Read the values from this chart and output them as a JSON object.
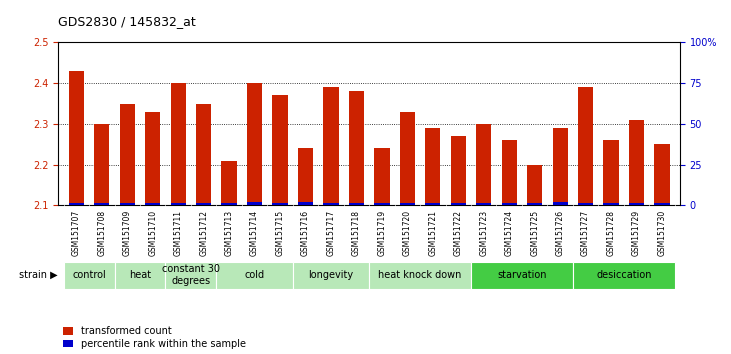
{
  "title": "GDS2830 / 145832_at",
  "samples": [
    "GSM151707",
    "GSM151708",
    "GSM151709",
    "GSM151710",
    "GSM151711",
    "GSM151712",
    "GSM151713",
    "GSM151714",
    "GSM151715",
    "GSM151716",
    "GSM151717",
    "GSM151718",
    "GSM151719",
    "GSM151720",
    "GSM151721",
    "GSM151722",
    "GSM151723",
    "GSM151724",
    "GSM151725",
    "GSM151726",
    "GSM151727",
    "GSM151728",
    "GSM151729",
    "GSM151730"
  ],
  "red_values": [
    2.43,
    2.3,
    2.35,
    2.33,
    2.4,
    2.35,
    2.21,
    2.4,
    2.37,
    2.24,
    2.39,
    2.38,
    2.24,
    2.33,
    2.29,
    2.27,
    2.3,
    2.26,
    2.2,
    2.29,
    2.39,
    2.26,
    2.31,
    2.25
  ],
  "blue_values": [
    0.005,
    0.005,
    0.005,
    0.005,
    0.005,
    0.005,
    0.005,
    0.007,
    0.005,
    0.007,
    0.005,
    0.005,
    0.005,
    0.005,
    0.005,
    0.005,
    0.005,
    0.005,
    0.005,
    0.007,
    0.005,
    0.005,
    0.005,
    0.005
  ],
  "bar_bottom": 2.1,
  "ylim": [
    2.1,
    2.5
  ],
  "yticks_left": [
    2.1,
    2.2,
    2.3,
    2.4,
    2.5
  ],
  "ytick_labels_left": [
    "2.1",
    "2.2",
    "2.3",
    "2.4",
    "2.5"
  ],
  "yticks_right_pct": [
    0,
    25,
    50,
    75,
    100
  ],
  "ytick_labels_right": [
    "0",
    "25",
    "50",
    "75",
    "100%"
  ],
  "groups": [
    {
      "label": "control",
      "start": 0,
      "end": 2,
      "light": true
    },
    {
      "label": "heat",
      "start": 2,
      "end": 4,
      "light": true
    },
    {
      "label": "constant 30\ndegrees",
      "start": 4,
      "end": 6,
      "light": true
    },
    {
      "label": "cold",
      "start": 6,
      "end": 9,
      "light": true
    },
    {
      "label": "longevity",
      "start": 9,
      "end": 12,
      "light": true
    },
    {
      "label": "heat knock down",
      "start": 12,
      "end": 16,
      "light": true
    },
    {
      "label": "starvation",
      "start": 16,
      "end": 20,
      "light": false
    },
    {
      "label": "desiccation",
      "start": 20,
      "end": 24,
      "light": false
    }
  ],
  "red_color": "#cc2200",
  "blue_color": "#0000cc",
  "bar_width": 0.6,
  "bg_plot": "#ffffff",
  "bg_xtick": "#c8c8c8",
  "group_color_light": "#b8e8b8",
  "group_color_dark": "#44cc44",
  "left_tick_color": "#cc2200",
  "right_tick_color": "#0000cc",
  "title_fontsize": 9,
  "tick_label_fontsize": 7,
  "group_label_fontsize": 7,
  "sample_label_fontsize": 5.5
}
